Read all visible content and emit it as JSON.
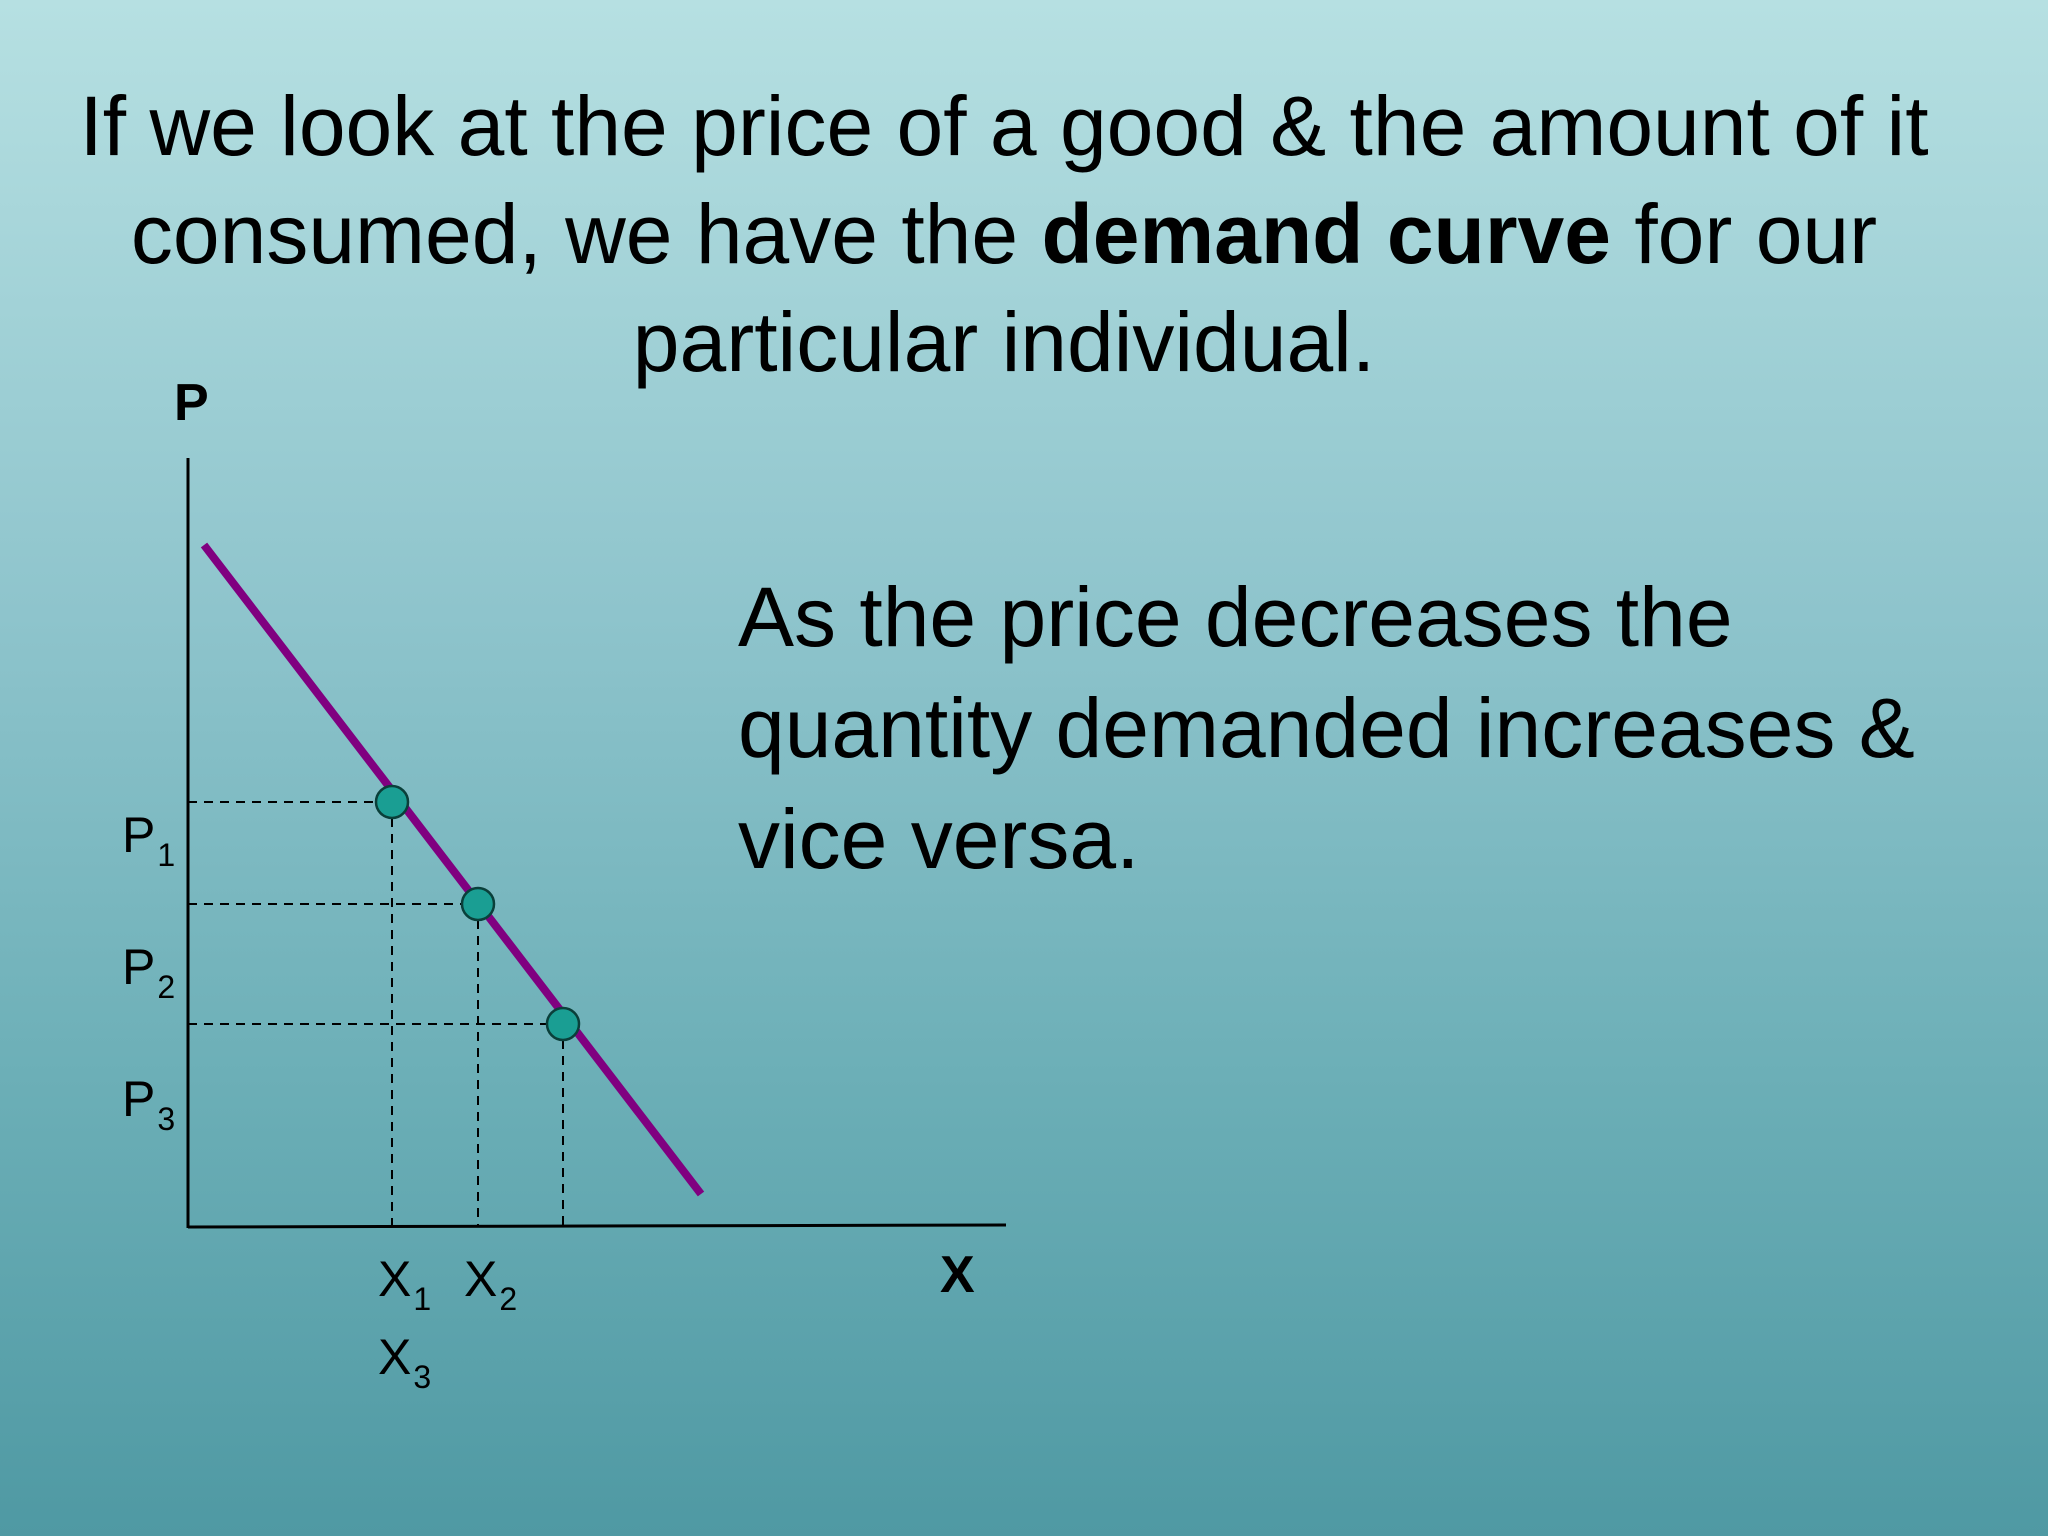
{
  "slide": {
    "title_part1": "If we look at the price of a good & the amount of it consumed, we have the ",
    "title_bold": "demand curve",
    "title_part2": " for our particular individual.",
    "side_text": "As the price decreases the quantity demanded increases & vice versa."
  },
  "diagram": {
    "y_axis_label": "P",
    "x_axis_label": "X",
    "price_labels": [
      {
        "base": "P",
        "sub": "1"
      },
      {
        "base": "P",
        "sub": "2"
      },
      {
        "base": "P",
        "sub": "3"
      }
    ],
    "quantity_labels": [
      {
        "base": "X",
        "sub": "1"
      },
      {
        "base": "X",
        "sub": "2"
      },
      {
        "base": "X",
        "sub": "3"
      }
    ],
    "colors": {
      "curve": "#800080",
      "point_fill": "#1a9e93",
      "point_stroke": "#0a3f3a",
      "axis": "#000000"
    }
  }
}
